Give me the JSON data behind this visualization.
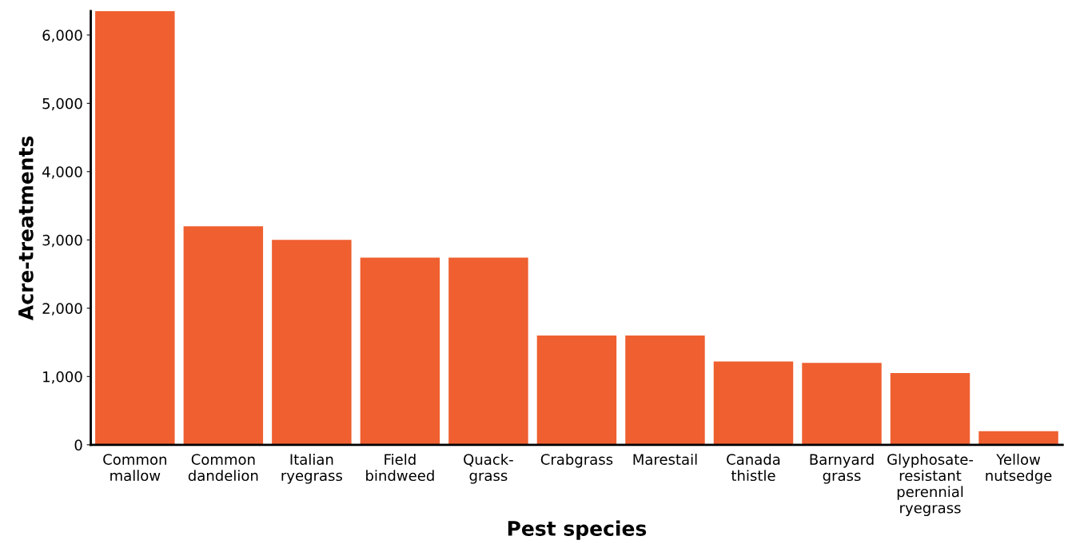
{
  "chart_data": {
    "type": "bar",
    "xlabel": "Pest species",
    "ylabel": "Acre-treatments",
    "categories": [
      "Common\nmallow",
      "Common\ndandelion",
      "Italian\nryegrass",
      "Field\nbindweed",
      "Quack-\ngrass",
      "Crabgrass",
      "Marestail",
      "Canada\nthistle",
      "Barnyard\ngrass",
      "Glyphosate-\nresistant\nperennial\nryegrass",
      "Yellow\nnutsedge"
    ],
    "values": [
      6350,
      3200,
      3000,
      2740,
      2740,
      1600,
      1600,
      1220,
      1200,
      1050,
      200
    ],
    "color": "#ef5f30",
    "ylim": [
      0,
      6350
    ],
    "yticks": [
      0,
      {
        "value": 1000,
        "label": "1,000"
      },
      {
        "value": 2000,
        "label": "2,000"
      },
      {
        "value": 3000,
        "label": "3,000"
      },
      {
        "value": 4000,
        "label": "4,000"
      },
      {
        "value": 5000,
        "label": "5,000"
      },
      {
        "value": 6000,
        "label": "6,000"
      }
    ],
    "grid": false
  }
}
